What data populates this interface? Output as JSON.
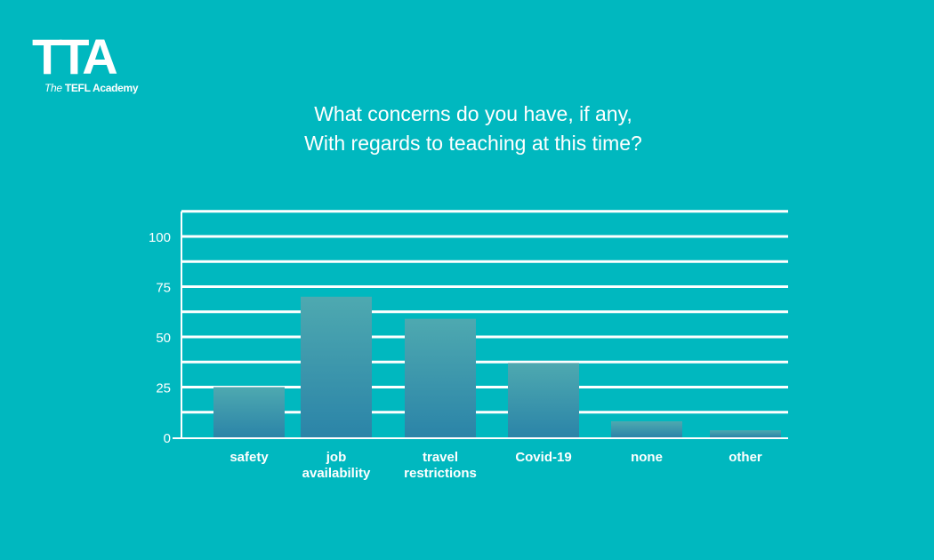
{
  "logo": {
    "mark": "TTA",
    "text_the": "The",
    "text_name": "TEFL Academy"
  },
  "chart_data": {
    "type": "bar",
    "title_lines": [
      "What concerns do you have, if any,",
      "With regards to teaching at this time?"
    ],
    "categories": [
      [
        "safety"
      ],
      [
        "job",
        "availability"
      ],
      [
        "travel",
        "restrictions"
      ],
      [
        "Covid-19"
      ],
      [
        "none"
      ],
      [
        "other"
      ]
    ],
    "values": [
      25,
      70,
      59,
      37,
      8,
      3.5
    ],
    "xlabel": "",
    "ylabel": "",
    "ylim": [
      0,
      112.5
    ],
    "yticks": [
      0,
      25,
      50,
      75,
      100
    ],
    "gridlines_every": 12.5,
    "grid": true,
    "colors": {
      "background": "#00b8bf",
      "bar_top": "#4ea9b0",
      "bar_bottom": "#2b84a8",
      "grid": "#ffffff"
    }
  }
}
